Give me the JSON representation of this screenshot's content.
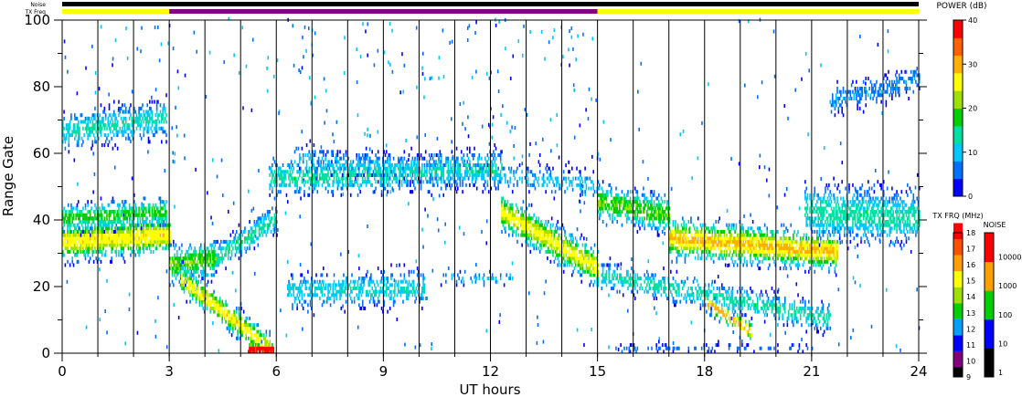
{
  "chart_data": {
    "type": "heatmap",
    "xlabel": "UT hours",
    "ylabel": "Range Gate",
    "xlim": [
      0,
      24
    ],
    "ylim": [
      0,
      100
    ],
    "x_ticks": [
      0,
      3,
      6,
      9,
      12,
      15,
      18,
      21,
      24
    ],
    "y_ticks": [
      0,
      20,
      40,
      60,
      80,
      100
    ],
    "x_minor_step": 1,
    "vertical_hour_lines": true,
    "top_bars": {
      "noise_label": "Noise",
      "txfreq_label": "TX Freq",
      "noise_color": "#000000",
      "txfreq_segments": [
        {
          "start": 0,
          "end": 3,
          "color": "#ffff00"
        },
        {
          "start": 3,
          "end": 15,
          "color": "#800080"
        },
        {
          "start": 15,
          "end": 24,
          "color": "#ffff00"
        }
      ]
    },
    "power_colorbar": {
      "title": "POWER (dB)",
      "ticks": [
        0,
        10,
        20,
        30,
        40
      ],
      "range": [
        0,
        40
      ],
      "colors": [
        "#0000ff",
        "#0070ff",
        "#00c8ff",
        "#00e0a0",
        "#00d000",
        "#a0e000",
        "#ffff00",
        "#ffb000",
        "#ff6000",
        "#ff0000"
      ]
    },
    "txfreq_colorbar": {
      "title": "TX FRQ (MHz)",
      "ticks": [
        9,
        10,
        11,
        12,
        13,
        14,
        15,
        16,
        17,
        18
      ],
      "colors": [
        "#000000",
        "#800080",
        "#0000ff",
        "#00a0ff",
        "#00d000",
        "#a0e000",
        "#ffff00",
        "#ffa000",
        "#ff5000",
        "#ff0000"
      ]
    },
    "noise_colorbar": {
      "title": "NOISE",
      "ticks": [
        "1",
        "10",
        "100",
        "1000",
        "10000"
      ],
      "colors": [
        "#000000",
        "#0000ff",
        "#00d000",
        "#ffa000",
        "#ff0000"
      ]
    },
    "bands": [
      {
        "x": [
          0.0,
          3.0
        ],
        "y0": 33,
        "y1": 35,
        "w": 4,
        "p": 27,
        "d": 0.9
      },
      {
        "x": [
          0.0,
          2.9
        ],
        "y0": 40,
        "y1": 42,
        "w": 3,
        "p": 18,
        "d": 0.7
      },
      {
        "x": [
          0.0,
          2.9
        ],
        "y0": 66,
        "y1": 70,
        "w": 4,
        "p": 13,
        "d": 0.6
      },
      {
        "x": [
          3.0,
          4.3
        ],
        "y0": 26,
        "y1": 28,
        "w": 4,
        "p": 20,
        "d": 0.8
      },
      {
        "x": [
          3.3,
          5.8
        ],
        "y0": 22,
        "y1": 1,
        "w": 3,
        "p": 27,
        "d": 0.75
      },
      {
        "x": [
          5.2,
          5.9
        ],
        "y0": 0.5,
        "y1": 0.5,
        "w": 1.5,
        "p": 40,
        "d": 1.0
      },
      {
        "x": [
          4.3,
          6.0
        ],
        "y0": 28,
        "y1": 40,
        "w": 3,
        "p": 15,
        "d": 0.6
      },
      {
        "x": [
          5.8,
          12.3
        ],
        "y0": 52,
        "y1": 55,
        "w": 4,
        "p": 14,
        "d": 0.6
      },
      {
        "x": [
          6.5,
          15.0
        ],
        "y0": 58,
        "y1": 50,
        "w": 3,
        "p": 10,
        "d": 0.3
      },
      {
        "x": [
          6.3,
          10.2
        ],
        "y0": 18,
        "y1": 19,
        "w": 4,
        "p": 12,
        "d": 0.5
      },
      {
        "x": [
          10.6,
          12.6
        ],
        "y0": 22,
        "y1": 22,
        "w": 1.5,
        "p": 9,
        "d": 0.3
      },
      {
        "x": [
          12.3,
          15.0
        ],
        "y0": 42,
        "y1": 25,
        "w": 4,
        "p": 26,
        "d": 0.85
      },
      {
        "x": [
          15.0,
          17.0
        ],
        "y0": 45,
        "y1": 41,
        "w": 4,
        "p": 20,
        "d": 0.8
      },
      {
        "x": [
          17.0,
          21.7
        ],
        "y0": 34,
        "y1": 30,
        "w": 4,
        "p": 29,
        "d": 0.85
      },
      {
        "x": [
          15.1,
          21.5
        ],
        "y0": 23,
        "y1": 10,
        "w": 3,
        "p": 14,
        "d": 0.55
      },
      {
        "x": [
          18.0,
          19.3
        ],
        "y0": 15,
        "y1": 6,
        "w": 2,
        "p": 30,
        "d": 0.6
      },
      {
        "x": [
          20.8,
          24.0
        ],
        "y0": 42,
        "y1": 40,
        "w": 6,
        "p": 14,
        "d": 0.6
      },
      {
        "x": [
          21.5,
          24.0
        ],
        "y0": 75,
        "y1": 82,
        "w": 3,
        "p": 8,
        "d": 0.5
      },
      {
        "x": [
          15.5,
          21.0
        ],
        "y0": 1,
        "y1": 1,
        "w": 1,
        "p": 6,
        "d": 0.25
      }
    ]
  }
}
